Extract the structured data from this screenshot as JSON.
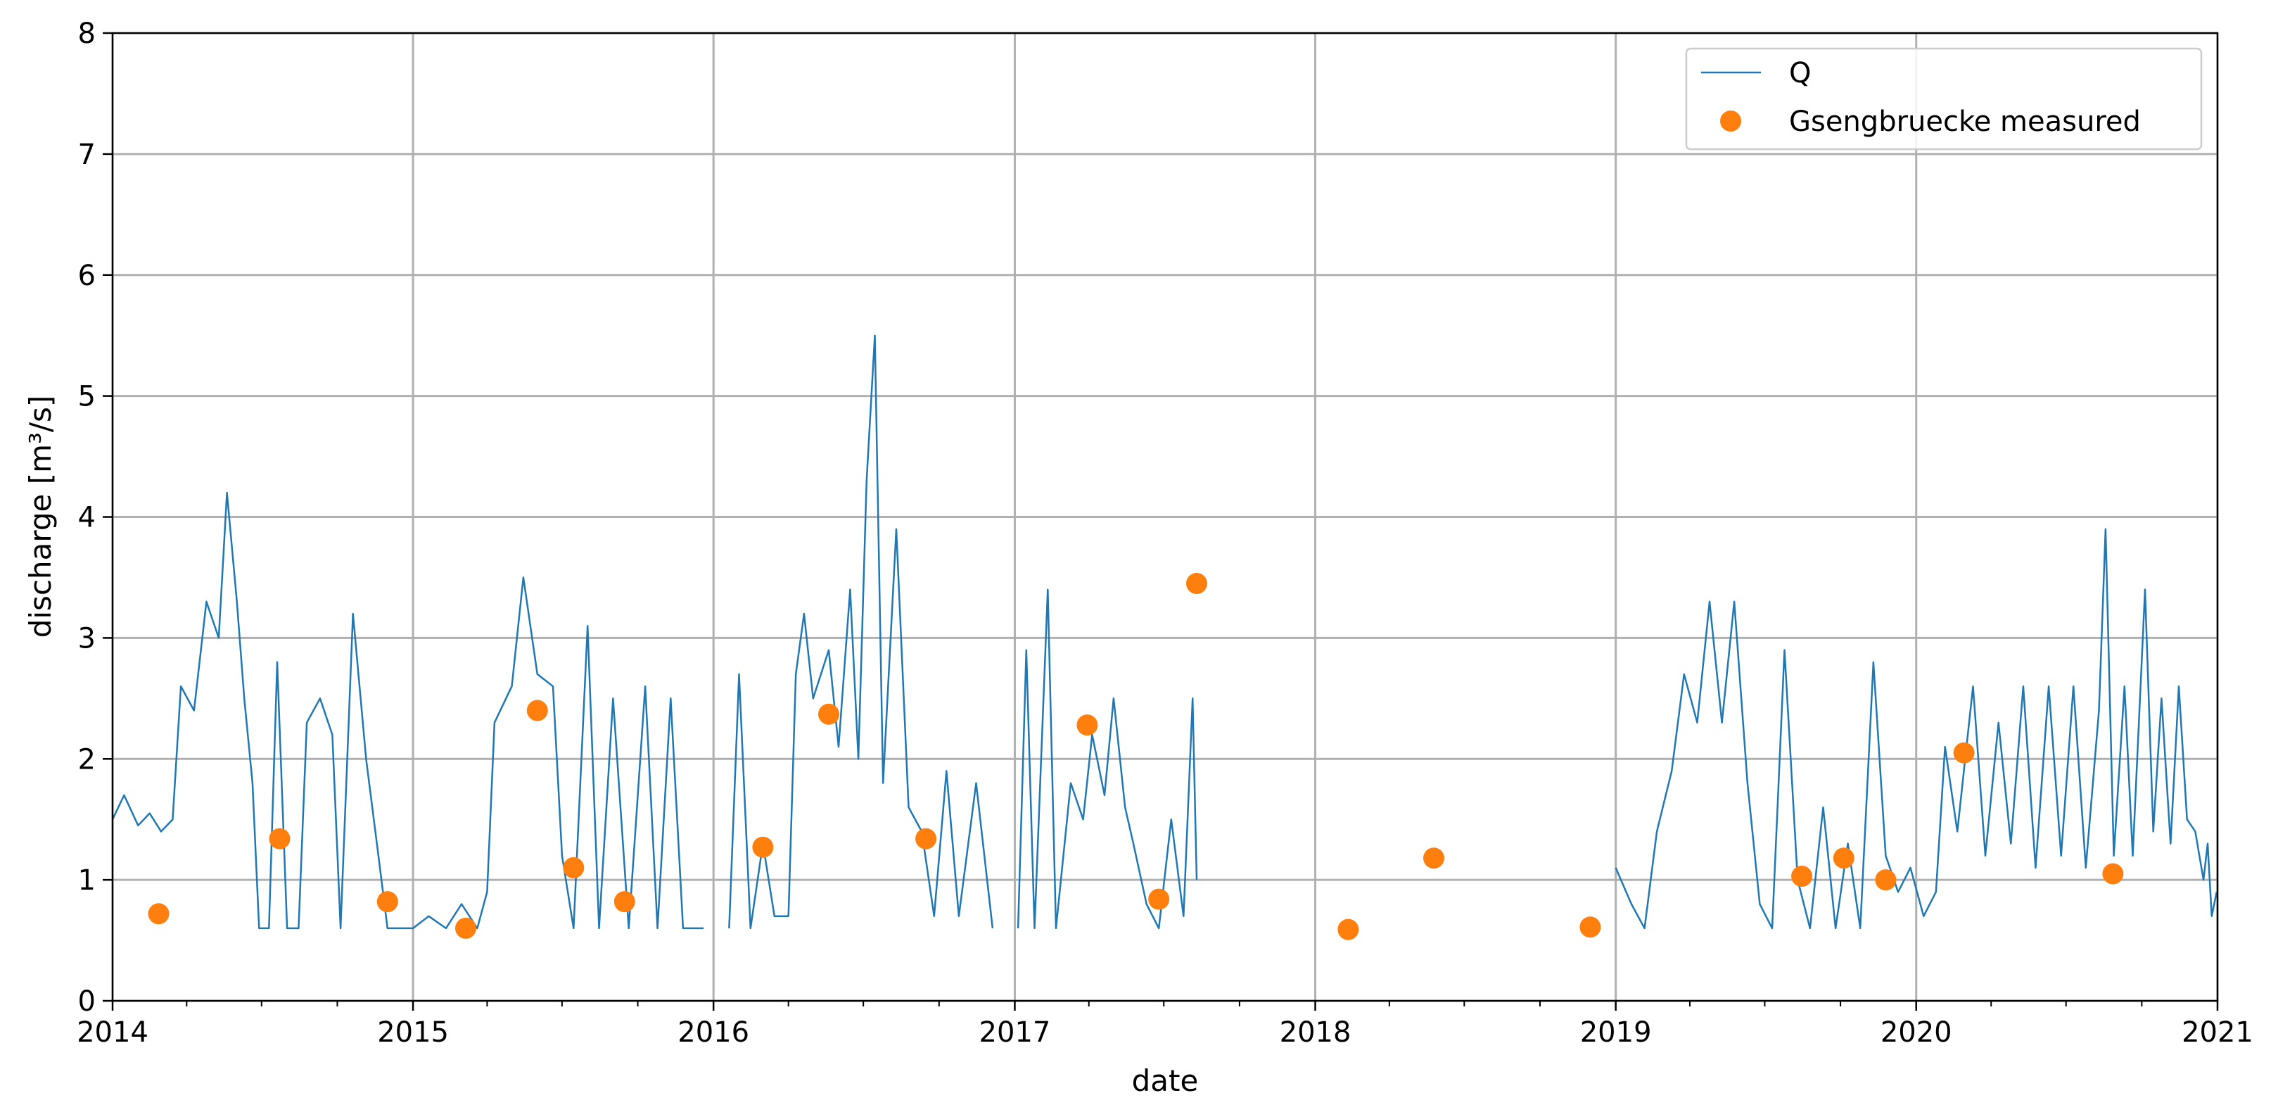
{
  "chart_data": {
    "type": "line",
    "xlabel": "date",
    "ylabel": "discharge [m³/s]",
    "ylim": [
      0,
      8
    ],
    "xlim": [
      "2014-01-01",
      "2021-01-01"
    ],
    "x_ticks": [
      "2014",
      "2015",
      "2016",
      "2017",
      "2018",
      "2019",
      "2020",
      "2021"
    ],
    "y_ticks": [
      "0",
      "1",
      "2",
      "3",
      "4",
      "5",
      "6",
      "7",
      "8"
    ],
    "grid": true,
    "legend_position": "top-right",
    "legend": [
      "Q",
      "Gsengbruecke measured"
    ],
    "colors": {
      "line": "#1f77b4",
      "points": "#ff7f0e"
    },
    "series": [
      {
        "name": "Q",
        "kind": "line",
        "segments": [
          [
            [
              "2014-01-01",
              1.5
            ],
            [
              "2014-01-15",
              1.7
            ],
            [
              "2014-02-01",
              1.45
            ],
            [
              "2014-02-15",
              1.55
            ],
            [
              "2014-03-01",
              1.4
            ],
            [
              "2014-03-15",
              1.5
            ],
            [
              "2014-03-25",
              2.6
            ],
            [
              "2014-04-10",
              2.4
            ],
            [
              "2014-04-25",
              3.3
            ],
            [
              "2014-05-10",
              3.0
            ],
            [
              "2014-05-20",
              4.2
            ],
            [
              "2014-06-01",
              3.3
            ],
            [
              "2014-06-10",
              2.5
            ],
            [
              "2014-06-20",
              1.8
            ],
            [
              "2014-06-28",
              0.6
            ],
            [
              "2014-07-10",
              0.6
            ],
            [
              "2014-07-20",
              2.8
            ],
            [
              "2014-08-01",
              0.6
            ],
            [
              "2014-08-15",
              0.6
            ],
            [
              "2014-08-25",
              2.3
            ],
            [
              "2014-09-10",
              2.5
            ],
            [
              "2014-09-25",
              2.2
            ],
            [
              "2014-10-05",
              0.6
            ],
            [
              "2014-10-20",
              3.2
            ],
            [
              "2014-11-05",
              2.0
            ],
            [
              "2014-11-20",
              1.2
            ],
            [
              "2014-12-01",
              0.6
            ],
            [
              "2014-12-15",
              0.6
            ],
            [
              "2015-01-01",
              0.6
            ],
            [
              "2015-01-20",
              0.7
            ],
            [
              "2015-02-10",
              0.6
            ],
            [
              "2015-03-01",
              0.8
            ],
            [
              "2015-03-20",
              0.6
            ],
            [
              "2015-04-01",
              0.9
            ],
            [
              "2015-04-10",
              2.3
            ],
            [
              "2015-05-01",
              2.6
            ],
            [
              "2015-05-15",
              3.5
            ],
            [
              "2015-06-01",
              2.7
            ],
            [
              "2015-06-20",
              2.6
            ],
            [
              "2015-07-01",
              1.2
            ],
            [
              "2015-07-15",
              0.6
            ],
            [
              "2015-08-01",
              3.1
            ],
            [
              "2015-08-15",
              0.6
            ],
            [
              "2015-09-01",
              2.5
            ],
            [
              "2015-09-20",
              0.6
            ],
            [
              "2015-10-10",
              2.6
            ],
            [
              "2015-10-25",
              0.6
            ],
            [
              "2015-11-10",
              2.5
            ],
            [
              "2015-11-25",
              0.6
            ],
            [
              "2015-12-20",
              0.6
            ]
          ],
          [
            [
              "2016-01-20",
              0.6
            ],
            [
              "2016-02-01",
              2.7
            ],
            [
              "2016-02-15",
              0.6
            ],
            [
              "2016-03-01",
              1.3
            ],
            [
              "2016-03-15",
              0.7
            ],
            [
              "2016-04-01",
              0.7
            ],
            [
              "2016-04-10",
              2.7
            ],
            [
              "2016-04-20",
              3.2
            ],
            [
              "2016-05-01",
              2.5
            ],
            [
              "2016-05-20",
              2.9
            ],
            [
              "2016-06-01",
              2.1
            ],
            [
              "2016-06-15",
              3.4
            ],
            [
              "2016-06-25",
              2.0
            ],
            [
              "2016-07-05",
              4.3
            ],
            [
              "2016-07-15",
              5.5
            ],
            [
              "2016-07-25",
              1.8
            ],
            [
              "2016-08-10",
              3.9
            ],
            [
              "2016-08-25",
              1.6
            ],
            [
              "2016-09-10",
              1.4
            ],
            [
              "2016-09-25",
              0.7
            ],
            [
              "2016-10-10",
              1.9
            ],
            [
              "2016-10-25",
              0.7
            ],
            [
              "2016-11-15",
              1.8
            ],
            [
              "2016-12-05",
              0.6
            ]
          ],
          [
            [
              "2017-01-05",
              0.6
            ],
            [
              "2017-01-15",
              2.9
            ],
            [
              "2017-01-25",
              0.6
            ],
            [
              "2017-02-10",
              3.4
            ],
            [
              "2017-02-20",
              0.6
            ],
            [
              "2017-03-10",
              1.8
            ],
            [
              "2017-03-25",
              1.5
            ],
            [
              "2017-04-05",
              2.2
            ],
            [
              "2017-04-20",
              1.7
            ],
            [
              "2017-05-01",
              2.5
            ],
            [
              "2017-05-15",
              1.6
            ],
            [
              "2017-05-25",
              1.3
            ],
            [
              "2017-06-10",
              0.8
            ],
            [
              "2017-06-25",
              0.6
            ],
            [
              "2017-07-10",
              1.5
            ],
            [
              "2017-07-25",
              0.7
            ],
            [
              "2017-08-05",
              2.5
            ],
            [
              "2017-08-10",
              1.0
            ]
          ],
          [
            [
              "2019-01-01",
              1.1
            ],
            [
              "2019-01-20",
              0.8
            ],
            [
              "2019-02-05",
              0.6
            ],
            [
              "2019-02-20",
              1.4
            ],
            [
              "2019-03-10",
              1.9
            ],
            [
              "2019-03-25",
              2.7
            ],
            [
              "2019-04-10",
              2.3
            ],
            [
              "2019-04-25",
              3.3
            ],
            [
              "2019-05-10",
              2.3
            ],
            [
              "2019-05-25",
              3.3
            ],
            [
              "2019-06-10",
              1.8
            ],
            [
              "2019-06-25",
              0.8
            ],
            [
              "2019-07-10",
              0.6
            ],
            [
              "2019-07-25",
              2.9
            ],
            [
              "2019-08-10",
              1.0
            ],
            [
              "2019-08-25",
              0.6
            ],
            [
              "2019-09-10",
              1.6
            ],
            [
              "2019-09-25",
              0.6
            ],
            [
              "2019-10-10",
              1.3
            ],
            [
              "2019-10-25",
              0.6
            ],
            [
              "2019-11-10",
              2.8
            ],
            [
              "2019-11-25",
              1.2
            ],
            [
              "2019-12-10",
              0.9
            ],
            [
              "2019-12-25",
              1.1
            ],
            [
              "2020-01-10",
              0.7
            ],
            [
              "2020-01-25",
              0.9
            ],
            [
              "2020-02-05",
              2.1
            ],
            [
              "2020-02-20",
              1.4
            ],
            [
              "2020-03-10",
              2.6
            ],
            [
              "2020-03-25",
              1.2
            ],
            [
              "2020-04-10",
              2.3
            ],
            [
              "2020-04-25",
              1.3
            ],
            [
              "2020-05-10",
              2.6
            ],
            [
              "2020-05-25",
              1.1
            ],
            [
              "2020-06-10",
              2.6
            ],
            [
              "2020-06-25",
              1.2
            ],
            [
              "2020-07-10",
              2.6
            ],
            [
              "2020-07-25",
              1.1
            ],
            [
              "2020-08-10",
              2.4
            ],
            [
              "2020-08-18",
              3.9
            ],
            [
              "2020-08-28",
              1.2
            ],
            [
              "2020-09-10",
              2.6
            ],
            [
              "2020-09-20",
              1.2
            ],
            [
              "2020-10-05",
              3.4
            ],
            [
              "2020-10-15",
              1.4
            ],
            [
              "2020-10-25",
              2.5
            ],
            [
              "2020-11-05",
              1.3
            ],
            [
              "2020-11-15",
              2.6
            ],
            [
              "2020-11-25",
              1.5
            ],
            [
              "2020-12-05",
              1.4
            ],
            [
              "2020-12-15",
              1.0
            ],
            [
              "2020-12-20",
              1.3
            ],
            [
              "2020-12-25",
              0.7
            ],
            [
              "2020-12-31",
              0.9
            ]
          ]
        ]
      },
      {
        "name": "Gsengbruecke measured",
        "kind": "scatter",
        "points": [
          [
            "2014-02-26",
            0.72
          ],
          [
            "2014-07-23",
            1.34
          ],
          [
            "2014-12-01",
            0.82
          ],
          [
            "2015-03-06",
            0.6
          ],
          [
            "2015-06-01",
            2.4
          ],
          [
            "2015-07-15",
            1.1
          ],
          [
            "2015-09-15",
            0.82
          ],
          [
            "2016-03-01",
            1.27
          ],
          [
            "2016-05-20",
            2.37
          ],
          [
            "2016-09-15",
            1.34
          ],
          [
            "2017-03-30",
            2.28
          ],
          [
            "2017-06-25",
            0.84
          ],
          [
            "2017-08-10",
            3.45
          ],
          [
            "2018-02-10",
            0.59
          ],
          [
            "2018-05-25",
            1.18
          ],
          [
            "2018-12-01",
            0.61
          ],
          [
            "2019-08-15",
            1.03
          ],
          [
            "2019-10-05",
            1.18
          ],
          [
            "2019-11-25",
            1.0
          ],
          [
            "2020-02-28",
            2.05
          ],
          [
            "2020-08-27",
            1.05
          ]
        ]
      }
    ]
  }
}
